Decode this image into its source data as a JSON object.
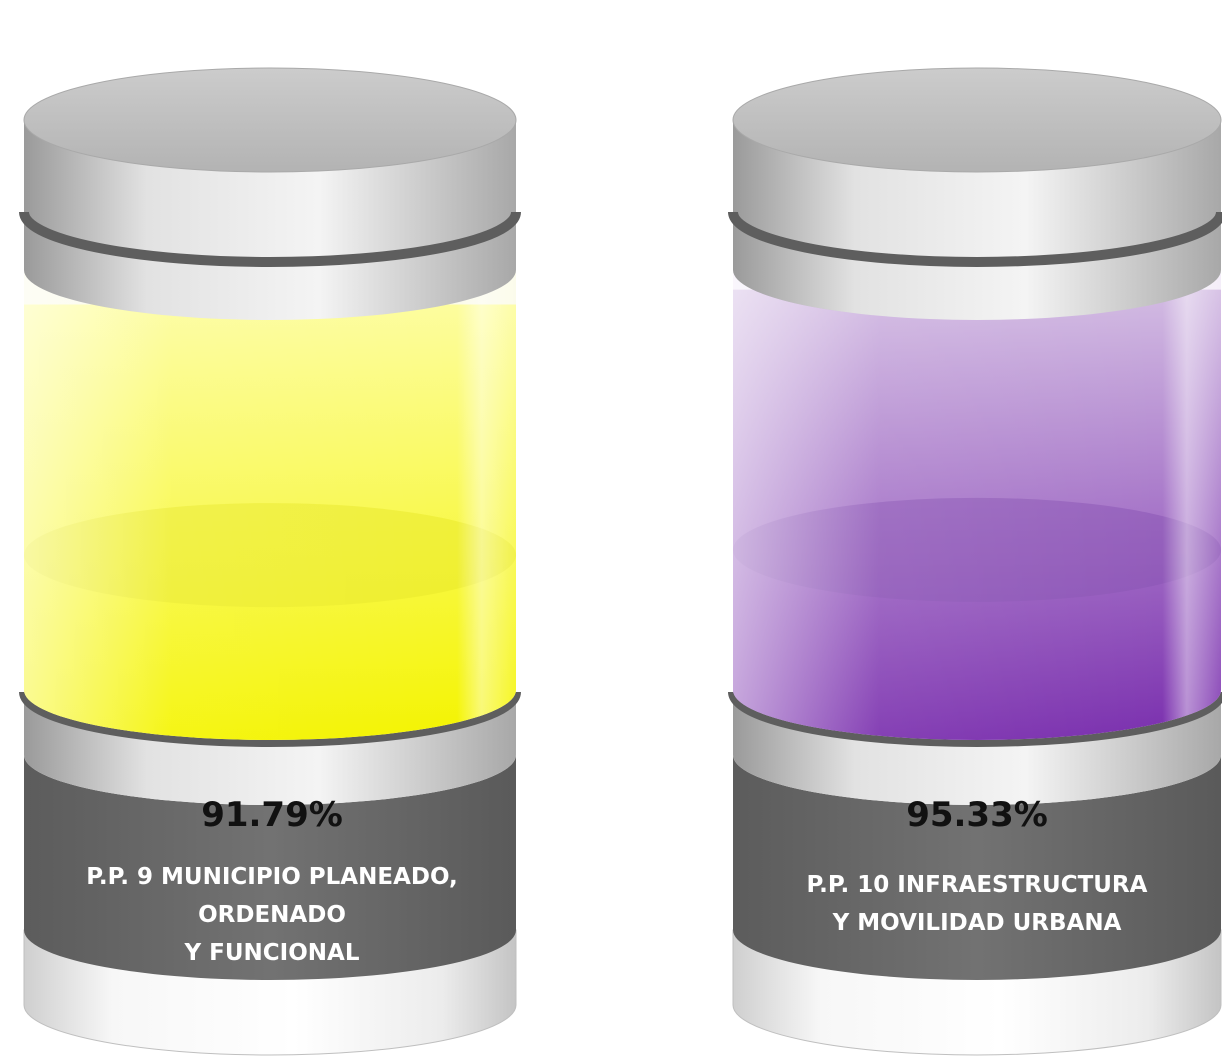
{
  "chart_data": {
    "type": "bar",
    "categories": [
      "P.P. 9 MUNICIPIO PLANEADO, ORDENADO Y FUNCIONAL",
      "P.P. 10 INFRAESTRUCTURA Y MOVILIDAD URBANA"
    ],
    "values": [
      91.79,
      95.33
    ],
    "value_labels": [
      "91.79%",
      "95.33%"
    ],
    "ylim": [
      0,
      100
    ],
    "grid": false,
    "legend": "none"
  },
  "cylinders": [
    {
      "label_lines": [
        "P.P. 9 MUNICIPIO PLANEADO,",
        "ORDENADO",
        "Y FUNCIONAL"
      ],
      "fill_light": "#fdfd9e",
      "fill_dark": "#f4f400",
      "fill_top": "#e9e92a"
    },
    {
      "label_lines": [
        "P.P. 10 INFRAESTRUCTURA",
        "Y MOVILIDAD URBANA"
      ],
      "fill_light": "#d3bce3",
      "fill_dark": "#7a2fae",
      "fill_top": "#8a55b4"
    }
  ],
  "colors": {
    "label_band": "#6e6e6e",
    "ring": "#5e5e5e",
    "lid": "#bdbdbd",
    "body": "#f2f2f2"
  }
}
